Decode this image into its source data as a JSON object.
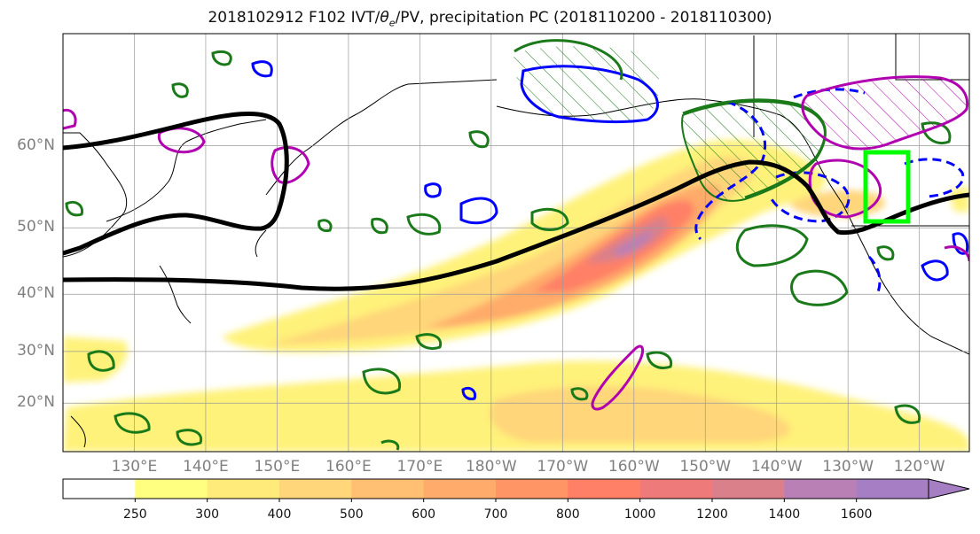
{
  "title": {
    "prefix": "2018102912 F102 IVT/",
    "theta": "θ",
    "theta_sub": "e",
    "suffix": "/PV, precipitation PC (2018110200 - 2018110300)"
  },
  "map": {
    "lat_labels": [
      {
        "text": "60°N",
        "lat": 60
      },
      {
        "text": "50°N",
        "lat": 50
      },
      {
        "text": "40°N",
        "lat": 40
      },
      {
        "text": "30°N",
        "lat": 30
      },
      {
        "text": "20°N",
        "lat": 20
      }
    ],
    "lon_labels": [
      {
        "text": "130°E",
        "lon": 130
      },
      {
        "text": "140°E",
        "lon": 140
      },
      {
        "text": "150°E",
        "lon": 150
      },
      {
        "text": "160°E",
        "lon": 160
      },
      {
        "text": "170°E",
        "lon": 170
      },
      {
        "text": "180°W",
        "lon": 180
      },
      {
        "text": "170°W",
        "lon": 190
      },
      {
        "text": "160°W",
        "lon": 200
      },
      {
        "text": "150°W",
        "lon": 210
      },
      {
        "text": "140°W",
        "lon": 220
      },
      {
        "text": "130°W",
        "lon": 230
      },
      {
        "text": "120°W",
        "lon": 240
      }
    ],
    "extent": {
      "lon_min": 120,
      "lon_max": 247,
      "lat_min": 10,
      "lat_max": 70
    },
    "highlight_box_color": "#00ff00",
    "contour_colors": {
      "theta_e": "#1a7a1a",
      "pv_positive": "#0000ff",
      "pv_negative": "#b000b0",
      "jet": "#000000"
    }
  },
  "colorbar": {
    "levels": [
      "250",
      "300",
      "400",
      "500",
      "600",
      "700",
      "800",
      "1000",
      "1200",
      "1400",
      "1600"
    ],
    "colors": [
      "#ffffff",
      "#ffff80",
      "#ffeb7a",
      "#ffd67a",
      "#ffc073",
      "#ffab6b",
      "#ff9464",
      "#ff8066",
      "#ee7a7a",
      "#d9808a",
      "#b980b5",
      "#a57ec4"
    ]
  }
}
